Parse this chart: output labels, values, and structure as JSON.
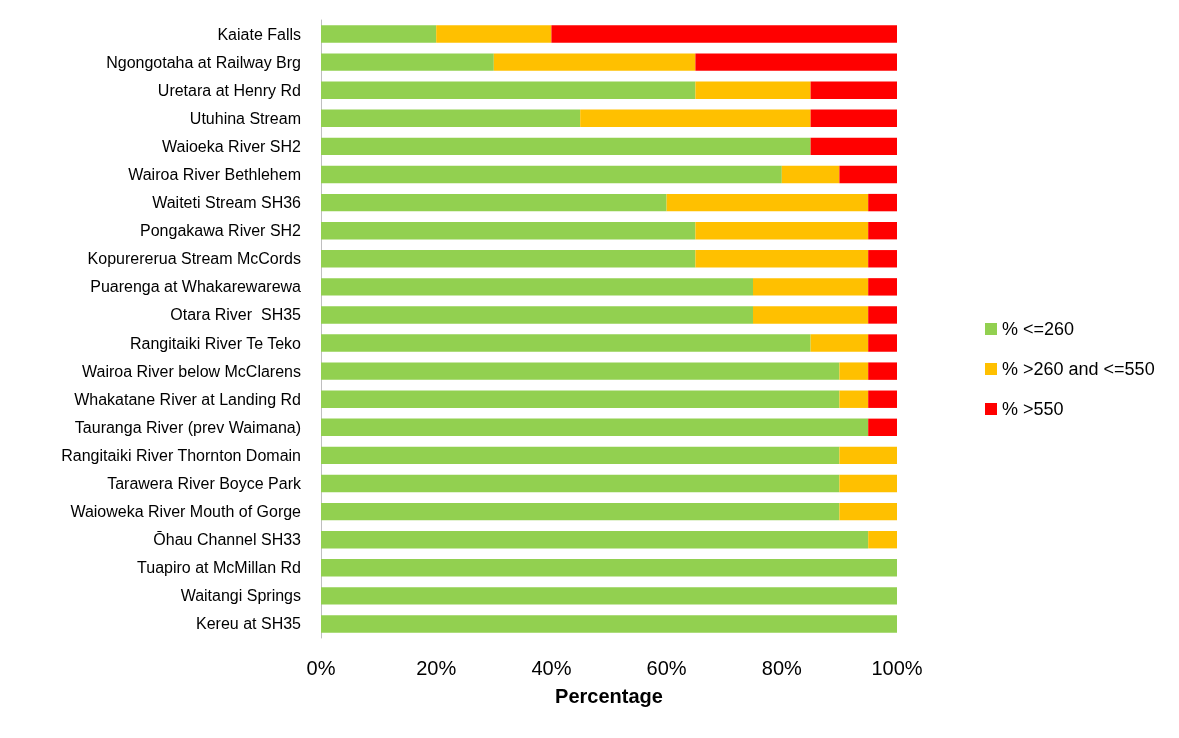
{
  "chart_data": {
    "type": "bar",
    "orientation": "horizontal",
    "stacked": true,
    "xlabel": "Percentage",
    "legend": "right",
    "grid": false,
    "categories": [
      "Kaiate Falls",
      "Ngongotaha at Railway Brg",
      "Uretara at Henry Rd",
      "Utuhina Stream",
      "Waioeka River SH2",
      "Wairoa River Bethlehem",
      "Waiteti Stream SH36",
      "Pongakawa River SH2",
      "Kopurererua Stream McCords",
      "Puarenga at Whakarewarewa",
      "Otara River  SH35",
      "Rangitaiki River Te Teko",
      "Wairoa River below McClarens",
      "Whakatane River at Landing Rd",
      "Tauranga River (prev Waimana)",
      "Rangitaiki River Thornton Domain",
      "Tarawera River Boyce Park",
      "Waioweka River Mouth of Gorge",
      "Ōhau Channel SH33",
      "Tuapiro at McMillan Rd",
      "Waitangi Springs",
      "Kereu at SH35"
    ],
    "series": [
      {
        "name": "% <=260",
        "color": "#92d050",
        "values": [
          20,
          30,
          65,
          45,
          85,
          80,
          60,
          65,
          65,
          75,
          75,
          85,
          90,
          90,
          95,
          90,
          90,
          90,
          95,
          100,
          100,
          100
        ]
      },
      {
        "name": "% >260 and <=550",
        "color": "#ffc000",
        "values": [
          20,
          35,
          20,
          40,
          0,
          10,
          35,
          30,
          30,
          20,
          20,
          10,
          5,
          5,
          0,
          10,
          10,
          10,
          5,
          0,
          0,
          0
        ]
      },
      {
        "name": "% >550",
        "color": "#ff0000",
        "values": [
          60,
          35,
          15,
          15,
          15,
          10,
          5,
          5,
          5,
          5,
          5,
          5,
          5,
          5,
          5,
          0,
          0,
          0,
          0,
          0,
          0,
          0
        ]
      }
    ],
    "xlim": [
      0,
      100
    ],
    "xticks": [
      {
        "value": 0,
        "label": "0%"
      },
      {
        "value": 20,
        "label": "20%"
      },
      {
        "value": 40,
        "label": "40%"
      },
      {
        "value": 60,
        "label": "60%"
      },
      {
        "value": 80,
        "label": "80%"
      },
      {
        "value": 100,
        "label": "100%"
      }
    ]
  }
}
